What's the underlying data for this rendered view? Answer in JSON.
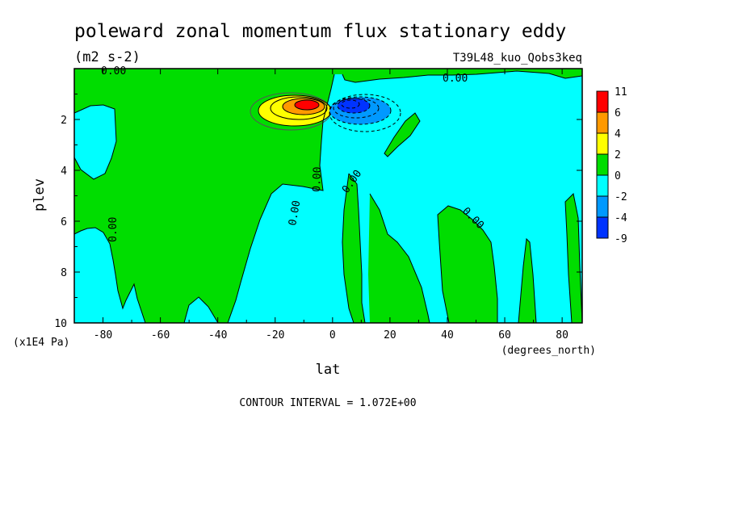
{
  "chart_data": {
    "type": "heatmap",
    "title": "poleward zonal momentum flux stationary eddy",
    "units": "(m2 s-2)",
    "run_label": "T39L48_kuo_Qobs3keq",
    "xlabel": "lat",
    "x_units": "(degrees_north)",
    "ylabel": "plev",
    "y_units": "(x1E4 Pa)",
    "xlim": [
      -90,
      87
    ],
    "ylim": [
      10,
      0
    ],
    "x_ticks": [
      "-80",
      "-60",
      "-40",
      "-20",
      "0",
      "20",
      "40",
      "60",
      "80"
    ],
    "y_ticks": [
      "2",
      "4",
      "6",
      "8",
      "10"
    ],
    "contour_interval_text": "CONTOUR INTERVAL = 1.072E+00",
    "contour_labels": [
      "0.00",
      "0.00",
      "0.00",
      "0.00",
      "0.00",
      "0.00",
      "0.00"
    ],
    "colorbar": {
      "levels": [
        "11",
        "6",
        "4",
        "2",
        "0",
        "-2",
        "-4",
        "-9"
      ],
      "colors": [
        "#ff0000",
        "#ff9900",
        "#ffff00",
        "#00dd00",
        "#00ffff",
        "#0099ff",
        "#0033ff"
      ]
    },
    "background_color": "#00ffff",
    "features": [
      {
        "name": "positive-max",
        "lat": -7,
        "plev": 1.45,
        "value": 11
      },
      {
        "name": "negative-min",
        "lat": 8,
        "plev": 1.45,
        "value": -9
      }
    ]
  }
}
